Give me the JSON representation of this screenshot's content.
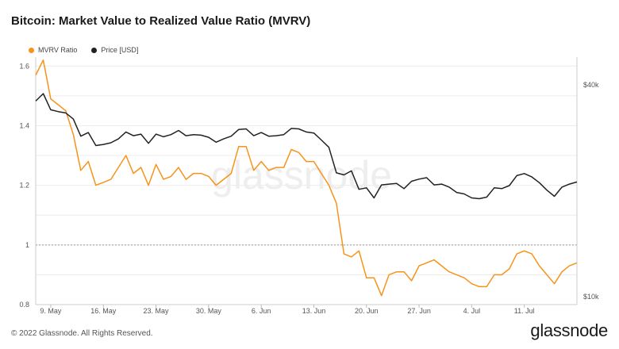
{
  "title": "Bitcoin: Market Value to Realized Value Ratio (MVRV)",
  "footer": "© 2022 Glassnode. All Rights Reserved.",
  "brand": "glassnode",
  "watermark": "glassnode",
  "legend": [
    {
      "label": "MVRV Ratio",
      "color": "#f7931a"
    },
    {
      "label": "Price [USD]",
      "color": "#222222"
    }
  ],
  "chart_data": {
    "type": "line",
    "title": "Bitcoin: Market Value to Realized Value Ratio (MVRV)",
    "x_ticks": [
      "9. May",
      "16. May",
      "23. May",
      "30. May",
      "6. Jun",
      "13. Jun",
      "20. Jun",
      "27. Jun",
      "4. Jul",
      "11. Jul"
    ],
    "y_left": {
      "ticks": [
        "0.8",
        "1",
        "1.2",
        "1.4",
        "1.6"
      ],
      "range": [
        0.8,
        1.63
      ]
    },
    "y_right": {
      "ticks": [
        "$10k",
        "$40k"
      ],
      "scale": "log"
    },
    "reference_line": 1.0,
    "grid": true,
    "legend_position": "top-left",
    "series": [
      {
        "name": "MVRV Ratio",
        "color": "#f7931a",
        "axis": "left",
        "values": [
          1.57,
          1.62,
          1.49,
          1.47,
          1.45,
          1.37,
          1.25,
          1.28,
          1.2,
          1.21,
          1.22,
          1.26,
          1.3,
          1.24,
          1.26,
          1.2,
          1.27,
          1.22,
          1.23,
          1.26,
          1.22,
          1.24,
          1.24,
          1.23,
          1.2,
          1.22,
          1.24,
          1.33,
          1.33,
          1.25,
          1.28,
          1.25,
          1.26,
          1.26,
          1.32,
          1.31,
          1.28,
          1.28,
          1.24,
          1.2,
          1.14,
          0.97,
          0.96,
          0.98,
          0.89,
          0.89,
          0.83,
          0.9,
          0.91,
          0.91,
          0.88,
          0.93,
          0.94,
          0.95,
          0.93,
          0.91,
          0.9,
          0.89,
          0.87,
          0.86,
          0.86,
          0.9,
          0.9,
          0.92,
          0.97,
          0.98,
          0.97,
          0.93,
          0.9,
          0.87,
          0.91,
          0.93,
          0.94
        ]
      },
      {
        "name": "Price [USD]",
        "color": "#222222",
        "axis": "right",
        "values": [
          36000,
          37800,
          34000,
          33600,
          33300,
          32000,
          28600,
          29300,
          26900,
          27100,
          27400,
          28100,
          29400,
          28700,
          29000,
          27300,
          29000,
          28500,
          28900,
          29700,
          28700,
          28900,
          28800,
          28400,
          27500,
          28100,
          28600,
          29900,
          30000,
          28700,
          29300,
          28600,
          28700,
          28900,
          30100,
          30000,
          29400,
          29200,
          27900,
          26600,
          22500,
          22200,
          22800,
          20200,
          20400,
          19100,
          20800,
          20900,
          21000,
          20300,
          21300,
          21600,
          21800,
          20800,
          20900,
          20500,
          19800,
          19600,
          19100,
          19000,
          19200,
          20400,
          20300,
          20700,
          22100,
          22400,
          21900,
          21100,
          20100,
          19300,
          20500,
          20900,
          21200
        ]
      }
    ]
  }
}
